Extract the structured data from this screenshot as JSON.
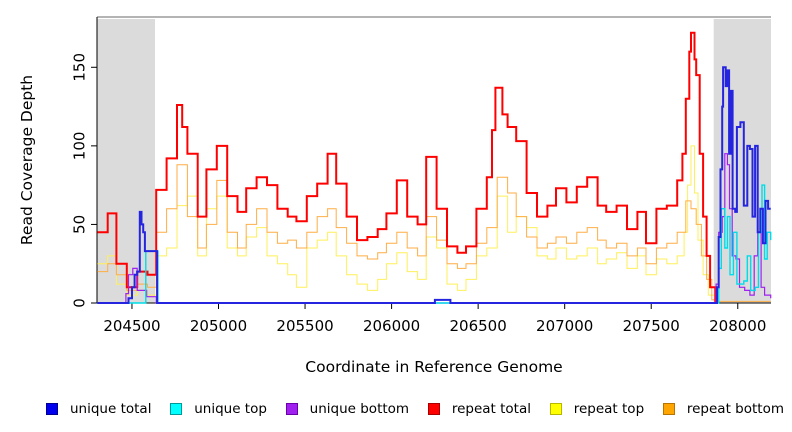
{
  "legend": {
    "items": [
      {
        "label": "unique total",
        "fill": "#0000EE",
        "border": "#000090"
      },
      {
        "label": "unique top",
        "fill": "#00FFFF",
        "border": "#009A9A"
      },
      {
        "label": "unique bottom",
        "fill": "#A020F0",
        "border": "#6A00A8"
      },
      {
        "label": "repeat total",
        "fill": "#FF0000",
        "border": "#A80000"
      },
      {
        "label": "repeat top",
        "fill": "#FFFF00",
        "border": "#B8B800"
      },
      {
        "label": "repeat bottom",
        "fill": "#FFA500",
        "border": "#B87400"
      }
    ]
  },
  "chart_data": {
    "type": "line",
    "subtype": "step",
    "title": "",
    "xlabel": "Coordinate in Reference Genome",
    "ylabel": "Read Coverage Depth",
    "xlim": [
      204298,
      208192
    ],
    "ylim": [
      0,
      182
    ],
    "x_ticks": [
      204500,
      205000,
      205500,
      206000,
      206500,
      207000,
      207500,
      208000
    ],
    "y_ticks": [
      0,
      50,
      100,
      150
    ],
    "grid": false,
    "legend_position": "bottom",
    "shade_color": "#DBDBDB",
    "frame_top_color": "#9C9C9C",
    "axis_color": "#000000",
    "shaded_regions": [
      {
        "from": 204298,
        "to": 204633
      },
      {
        "from": 207861,
        "to": 208192
      }
    ],
    "series": [
      {
        "name": "repeat top",
        "color": "#FFF059",
        "width": 1,
        "points": [
          [
            204300,
            25
          ],
          [
            204360,
            30
          ],
          [
            204410,
            12
          ],
          [
            204470,
            5
          ],
          [
            204530,
            8
          ],
          [
            204590,
            5
          ],
          [
            204640,
            30
          ],
          [
            204700,
            35
          ],
          [
            204760,
            62
          ],
          [
            204820,
            68
          ],
          [
            204880,
            30
          ],
          [
            204930,
            60
          ],
          [
            204990,
            68
          ],
          [
            205050,
            35
          ],
          [
            205110,
            30
          ],
          [
            205160,
            42
          ],
          [
            205220,
            48
          ],
          [
            205280,
            30
          ],
          [
            205340,
            25
          ],
          [
            205400,
            18
          ],
          [
            205450,
            10
          ],
          [
            205510,
            35
          ],
          [
            205570,
            40
          ],
          [
            205630,
            45
          ],
          [
            205680,
            30
          ],
          [
            205740,
            18
          ],
          [
            205800,
            12
          ],
          [
            205860,
            8
          ],
          [
            205920,
            15
          ],
          [
            205970,
            25
          ],
          [
            206030,
            32
          ],
          [
            206090,
            20
          ],
          [
            206150,
            15
          ],
          [
            206200,
            42
          ],
          [
            206260,
            35
          ],
          [
            206320,
            12
          ],
          [
            206380,
            8
          ],
          [
            206430,
            15
          ],
          [
            206490,
            30
          ],
          [
            206550,
            35
          ],
          [
            206610,
            68
          ],
          [
            206670,
            45
          ],
          [
            206720,
            55
          ],
          [
            206780,
            48
          ],
          [
            206840,
            30
          ],
          [
            206900,
            28
          ],
          [
            206950,
            35
          ],
          [
            207010,
            28
          ],
          [
            207070,
            30
          ],
          [
            207130,
            35
          ],
          [
            207190,
            25
          ],
          [
            207240,
            28
          ],
          [
            207300,
            32
          ],
          [
            207360,
            22
          ],
          [
            207420,
            30
          ],
          [
            207470,
            18
          ],
          [
            207530,
            28
          ],
          [
            207590,
            25
          ],
          [
            207650,
            30
          ],
          [
            207690,
            45
          ],
          [
            207710,
            75
          ],
          [
            207730,
            100
          ],
          [
            207750,
            70
          ],
          [
            207770,
            40
          ],
          [
            207800,
            18
          ],
          [
            207830,
            5
          ],
          [
            207870,
            0
          ]
        ]
      },
      {
        "name": "repeat bottom",
        "color": "#FFAE45",
        "width": 1,
        "points": [
          [
            204300,
            20
          ],
          [
            204360,
            25
          ],
          [
            204410,
            18
          ],
          [
            204470,
            8
          ],
          [
            204530,
            12
          ],
          [
            204590,
            10
          ],
          [
            204640,
            45
          ],
          [
            204700,
            60
          ],
          [
            204760,
            88
          ],
          [
            204820,
            55
          ],
          [
            204880,
            35
          ],
          [
            204930,
            50
          ],
          [
            204990,
            78
          ],
          [
            205050,
            45
          ],
          [
            205110,
            35
          ],
          [
            205160,
            50
          ],
          [
            205220,
            60
          ],
          [
            205280,
            45
          ],
          [
            205340,
            38
          ],
          [
            205400,
            40
          ],
          [
            205450,
            35
          ],
          [
            205510,
            45
          ],
          [
            205570,
            55
          ],
          [
            205630,
            60
          ],
          [
            205680,
            48
          ],
          [
            205740,
            38
          ],
          [
            205800,
            30
          ],
          [
            205860,
            28
          ],
          [
            205920,
            32
          ],
          [
            205970,
            38
          ],
          [
            206030,
            45
          ],
          [
            206090,
            35
          ],
          [
            206150,
            30
          ],
          [
            206200,
            55
          ],
          [
            206260,
            40
          ],
          [
            206320,
            25
          ],
          [
            206380,
            22
          ],
          [
            206430,
            25
          ],
          [
            206490,
            38
          ],
          [
            206550,
            48
          ],
          [
            206610,
            80
          ],
          [
            206670,
            70
          ],
          [
            206720,
            55
          ],
          [
            206780,
            42
          ],
          [
            206840,
            35
          ],
          [
            206900,
            38
          ],
          [
            206950,
            42
          ],
          [
            207010,
            38
          ],
          [
            207070,
            45
          ],
          [
            207130,
            48
          ],
          [
            207190,
            40
          ],
          [
            207240,
            35
          ],
          [
            207300,
            38
          ],
          [
            207360,
            30
          ],
          [
            207420,
            35
          ],
          [
            207470,
            25
          ],
          [
            207530,
            35
          ],
          [
            207590,
            38
          ],
          [
            207650,
            45
          ],
          [
            207700,
            65
          ],
          [
            207730,
            60
          ],
          [
            207760,
            50
          ],
          [
            207790,
            30
          ],
          [
            207820,
            15
          ],
          [
            207850,
            2
          ],
          [
            207880,
            1
          ],
          [
            208190,
            1
          ]
        ]
      },
      {
        "name": "repeat total",
        "color": "#FF0000",
        "width": 2,
        "points": [
          [
            204300,
            45
          ],
          [
            204360,
            57
          ],
          [
            204410,
            25
          ],
          [
            204470,
            10
          ],
          [
            204530,
            20
          ],
          [
            204590,
            18
          ],
          [
            204640,
            72
          ],
          [
            204700,
            92
          ],
          [
            204760,
            126
          ],
          [
            204790,
            112
          ],
          [
            204820,
            95
          ],
          [
            204880,
            55
          ],
          [
            204930,
            85
          ],
          [
            204990,
            100
          ],
          [
            205050,
            68
          ],
          [
            205110,
            58
          ],
          [
            205160,
            73
          ],
          [
            205220,
            80
          ],
          [
            205280,
            75
          ],
          [
            205340,
            60
          ],
          [
            205400,
            55
          ],
          [
            205450,
            52
          ],
          [
            205510,
            68
          ],
          [
            205570,
            76
          ],
          [
            205630,
            95
          ],
          [
            205680,
            76
          ],
          [
            205740,
            55
          ],
          [
            205800,
            40
          ],
          [
            205860,
            42
          ],
          [
            205920,
            47
          ],
          [
            205970,
            57
          ],
          [
            206030,
            78
          ],
          [
            206090,
            55
          ],
          [
            206150,
            50
          ],
          [
            206200,
            93
          ],
          [
            206260,
            60
          ],
          [
            206320,
            36
          ],
          [
            206380,
            32
          ],
          [
            206430,
            36
          ],
          [
            206490,
            60
          ],
          [
            206550,
            80
          ],
          [
            206580,
            110
          ],
          [
            206600,
            137
          ],
          [
            206640,
            120
          ],
          [
            206670,
            112
          ],
          [
            206720,
            103
          ],
          [
            206780,
            70
          ],
          [
            206840,
            55
          ],
          [
            206900,
            62
          ],
          [
            206950,
            73
          ],
          [
            207010,
            64
          ],
          [
            207070,
            74
          ],
          [
            207130,
            80
          ],
          [
            207190,
            62
          ],
          [
            207240,
            58
          ],
          [
            207300,
            62
          ],
          [
            207360,
            47
          ],
          [
            207420,
            58
          ],
          [
            207470,
            38
          ],
          [
            207530,
            60
          ],
          [
            207590,
            62
          ],
          [
            207650,
            78
          ],
          [
            207680,
            95
          ],
          [
            207700,
            130
          ],
          [
            207720,
            160
          ],
          [
            207730,
            172
          ],
          [
            207750,
            155
          ],
          [
            207760,
            145
          ],
          [
            207780,
            95
          ],
          [
            207800,
            55
          ],
          [
            207820,
            30
          ],
          [
            207840,
            10
          ],
          [
            207870,
            0
          ]
        ]
      },
      {
        "name": "unique bottom",
        "color": "#A020F0",
        "width": 1.2,
        "points": [
          [
            204300,
            0
          ],
          [
            204455,
            0
          ],
          [
            204465,
            6
          ],
          [
            204480,
            18
          ],
          [
            204505,
            22
          ],
          [
            204530,
            8
          ],
          [
            204560,
            8
          ],
          [
            204585,
            4
          ],
          [
            204640,
            0
          ],
          [
            207860,
            0
          ],
          [
            207875,
            12
          ],
          [
            207890,
            45
          ],
          [
            207910,
            55
          ],
          [
            207925,
            95
          ],
          [
            207940,
            88
          ],
          [
            207952,
            60
          ],
          [
            207968,
            30
          ],
          [
            207990,
            28
          ],
          [
            208010,
            10
          ],
          [
            208040,
            8
          ],
          [
            208070,
            5
          ],
          [
            208095,
            30
          ],
          [
            208115,
            45
          ],
          [
            208135,
            10
          ],
          [
            208155,
            5
          ],
          [
            208190,
            3
          ]
        ]
      },
      {
        "name": "unique top",
        "color": "#00DDE8",
        "width": 1.4,
        "points": [
          [
            204300,
            0
          ],
          [
            204570,
            0
          ],
          [
            204580,
            33
          ],
          [
            204640,
            33
          ],
          [
            204650,
            0
          ],
          [
            207880,
            0
          ],
          [
            207890,
            22
          ],
          [
            207905,
            60
          ],
          [
            207925,
            35
          ],
          [
            207940,
            55
          ],
          [
            207955,
            18
          ],
          [
            207975,
            45
          ],
          [
            207995,
            12
          ],
          [
            208035,
            14
          ],
          [
            208055,
            30
          ],
          [
            208075,
            8
          ],
          [
            208100,
            10
          ],
          [
            208120,
            45
          ],
          [
            208140,
            75
          ],
          [
            208155,
            28
          ],
          [
            208170,
            45
          ],
          [
            208190,
            40
          ]
        ]
      },
      {
        "name": "unique total",
        "color": "#2525E0",
        "width": 2,
        "points": [
          [
            204300,
            0
          ],
          [
            204470,
            0
          ],
          [
            204480,
            3
          ],
          [
            204500,
            10
          ],
          [
            204515,
            18
          ],
          [
            204530,
            20
          ],
          [
            204545,
            58
          ],
          [
            204555,
            50
          ],
          [
            204565,
            45
          ],
          [
            204575,
            33
          ],
          [
            204635,
            33
          ],
          [
            204645,
            0
          ],
          [
            206240,
            0
          ],
          [
            206250,
            2
          ],
          [
            206330,
            2
          ],
          [
            206340,
            0
          ],
          [
            207870,
            0
          ],
          [
            207880,
            10
          ],
          [
            207890,
            42
          ],
          [
            207900,
            85
          ],
          [
            207910,
            125
          ],
          [
            207915,
            150
          ],
          [
            207930,
            138
          ],
          [
            207940,
            148
          ],
          [
            207950,
            95
          ],
          [
            207960,
            135
          ],
          [
            207970,
            60
          ],
          [
            207985,
            58
          ],
          [
            207995,
            112
          ],
          [
            208015,
            115
          ],
          [
            208035,
            62
          ],
          [
            208055,
            100
          ],
          [
            208070,
            98
          ],
          [
            208085,
            55
          ],
          [
            208100,
            100
          ],
          [
            208115,
            45
          ],
          [
            208130,
            60
          ],
          [
            208145,
            38
          ],
          [
            208160,
            65
          ],
          [
            208175,
            60
          ],
          [
            208190,
            60
          ]
        ]
      }
    ]
  }
}
